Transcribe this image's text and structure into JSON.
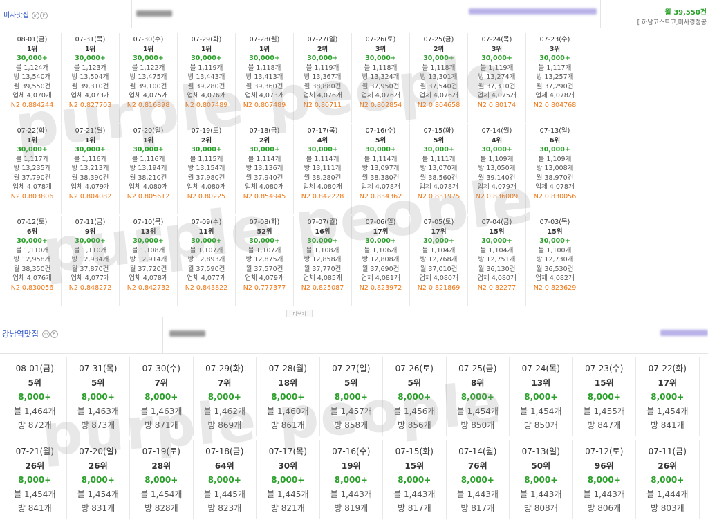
{
  "panel1": {
    "title": "미사맛집",
    "badge_m": "m",
    "badge_p": "P",
    "right_top": "월 39,550건",
    "right_bottom": "[ 하남코스트코,미사경정공",
    "more_label": "더보기",
    "rows": [
      [
        {
          "date": "08-01(금)",
          "rank": "1위",
          "range": "30,000+",
          "blog": "블 1,124개",
          "bang": "방 13,540개",
          "month": "월 39,550건",
          "biz": "업체 4,070개",
          "n2": "N2 0.884244"
        },
        {
          "date": "07-31(목)",
          "rank": "1위",
          "range": "30,000+",
          "blog": "블 1,123개",
          "bang": "방 13,504개",
          "month": "월 39,310건",
          "biz": "업체 4,073개",
          "n2": "N2 0.827703"
        },
        {
          "date": "07-30(수)",
          "rank": "1위",
          "range": "30,000+",
          "blog": "블 1,122개",
          "bang": "방 13,475개",
          "month": "월 39,100건",
          "biz": "업체 4,075개",
          "n2": "N2 0.816898"
        },
        {
          "date": "07-29(화)",
          "rank": "1위",
          "range": "30,000+",
          "blog": "블 1,119개",
          "bang": "방 13,443개",
          "month": "월 39,280건",
          "biz": "업체 4,076개",
          "n2": "N2 0.807489"
        },
        {
          "date": "07-28(월)",
          "rank": "1위",
          "range": "30,000+",
          "blog": "블 1,118개",
          "bang": "방 13,413개",
          "month": "월 39,360건",
          "biz": "업체 4,073개",
          "n2": "N2 0.807489"
        },
        {
          "date": "07-27(일)",
          "rank": "2위",
          "range": "30,000+",
          "blog": "블 1,119개",
          "bang": "방 13,367개",
          "month": "월 38,880건",
          "biz": "업체 4,076개",
          "n2": "N2 0.80711"
        },
        {
          "date": "07-26(토)",
          "rank": "3위",
          "range": "30,000+",
          "blog": "블 1,118개",
          "bang": "방 13,324개",
          "month": "월 37,950건",
          "biz": "업체 4,076개",
          "n2": "N2 0.802854"
        },
        {
          "date": "07-25(금)",
          "rank": "2위",
          "range": "30,000+",
          "blog": "블 1,118개",
          "bang": "방 13,301개",
          "month": "월 37,540건",
          "biz": "업체 4,076개",
          "n2": "N2 0.804658"
        },
        {
          "date": "07-24(목)",
          "rank": "3위",
          "range": "30,000+",
          "blog": "블 1,119개",
          "bang": "방 13,274개",
          "month": "월 37,310건",
          "biz": "업체 4,075개",
          "n2": "N2 0.80174"
        },
        {
          "date": "07-23(수)",
          "rank": "3위",
          "range": "30,000+",
          "blog": "블 1,117개",
          "bang": "방 13,257개",
          "month": "월 37,290건",
          "biz": "업체 4,078개",
          "n2": "N2 0.804768"
        }
      ],
      [
        {
          "date": "07-22(화)",
          "rank": "1위",
          "range": "30,000+",
          "blog": "블 1,117개",
          "bang": "방 13,235개",
          "month": "월 37,790건",
          "biz": "업체 4,078개",
          "n2": "N2 0.803806"
        },
        {
          "date": "07-21(월)",
          "rank": "1위",
          "range": "30,000+",
          "blog": "블 1,116개",
          "bang": "방 13,213개",
          "month": "월 38,390건",
          "biz": "업체 4,079개",
          "n2": "N2 0.804082"
        },
        {
          "date": "07-20(일)",
          "rank": "1위",
          "range": "30,000+",
          "blog": "블 1,116개",
          "bang": "방 13,194개",
          "month": "월 38,210건",
          "biz": "업체 4,080개",
          "n2": "N2 0.805612"
        },
        {
          "date": "07-19(토)",
          "rank": "2위",
          "range": "30,000+",
          "blog": "블 1,115개",
          "bang": "방 13,154개",
          "month": "월 37,980건",
          "biz": "업체 4,080개",
          "n2": "N2 0.80225"
        },
        {
          "date": "07-18(금)",
          "rank": "2위",
          "range": "30,000+",
          "blog": "블 1,114개",
          "bang": "방 13,136개",
          "month": "월 37,940건",
          "biz": "업체 4,080개",
          "n2": "N2 0.854945"
        },
        {
          "date": "07-17(목)",
          "rank": "4위",
          "range": "30,000+",
          "blog": "블 1,114개",
          "bang": "방 13,111개",
          "month": "월 38,280건",
          "biz": "업체 4,080개",
          "n2": "N2 0.842228"
        },
        {
          "date": "07-16(수)",
          "rank": "5위",
          "range": "30,000+",
          "blog": "블 1,114개",
          "bang": "방 13,097개",
          "month": "월 38,380건",
          "biz": "업체 4,078개",
          "n2": "N2 0.834362"
        },
        {
          "date": "07-15(화)",
          "rank": "5위",
          "range": "30,000+",
          "blog": "블 1,111개",
          "bang": "방 13,070개",
          "month": "월 38,560건",
          "biz": "업체 4,078개",
          "n2": "N2 0.831975"
        },
        {
          "date": "07-14(월)",
          "rank": "4위",
          "range": "30,000+",
          "blog": "블 1,109개",
          "bang": "방 13,050개",
          "month": "월 39,140건",
          "biz": "업체 4,079개",
          "n2": "N2 0.836009"
        },
        {
          "date": "07-13(일)",
          "rank": "6위",
          "range": "30,000+",
          "blog": "블 1,109개",
          "bang": "방 13,008개",
          "month": "월 38,970건",
          "biz": "업체 4,078개",
          "n2": "N2 0.830056"
        }
      ],
      [
        {
          "date": "07-12(토)",
          "rank": "6위",
          "range": "30,000+",
          "blog": "블 1,110개",
          "bang": "방 12,958개",
          "month": "월 38,350건",
          "biz": "업체 4,076개",
          "n2": "N2 0.830056"
        },
        {
          "date": "07-11(금)",
          "rank": "9위",
          "range": "30,000+",
          "blog": "블 1,110개",
          "bang": "방 12,934개",
          "month": "월 37,870건",
          "biz": "업체 4,077개",
          "n2": "N2 0.848272"
        },
        {
          "date": "07-10(목)",
          "rank": "13위",
          "range": "30,000+",
          "blog": "블 1,108개",
          "bang": "방 12,914개",
          "month": "월 37,720건",
          "biz": "업체 4,078개",
          "n2": "N2 0.842732"
        },
        {
          "date": "07-09(수)",
          "rank": "11위",
          "range": "30,000+",
          "blog": "블 1,107개",
          "bang": "방 12,893개",
          "month": "월 37,590건",
          "biz": "업체 4,077개",
          "n2": "N2 0.843822"
        },
        {
          "date": "07-08(화)",
          "rank": "52위",
          "range": "30,000+",
          "blog": "블 1,107개",
          "bang": "방 12,875개",
          "month": "월 37,570건",
          "biz": "업체 4,079개",
          "n2": "N2 0.777377"
        },
        {
          "date": "07-07(월)",
          "rank": "16위",
          "range": "30,000+",
          "blog": "블 1,108개",
          "bang": "방 12,858개",
          "month": "월 37,770건",
          "biz": "업체 4,085개",
          "n2": "N2 0.825087"
        },
        {
          "date": "07-06(일)",
          "rank": "17위",
          "range": "30,000+",
          "blog": "블 1,106개",
          "bang": "방 12,808개",
          "month": "월 37,690건",
          "biz": "업체 4,081개",
          "n2": "N2 0.823972"
        },
        {
          "date": "07-05(토)",
          "rank": "17위",
          "range": "30,000+",
          "blog": "블 1,104개",
          "bang": "방 12,768개",
          "month": "월 37,010건",
          "biz": "업체 4,080개",
          "n2": "N2 0.821869"
        },
        {
          "date": "07-04(금)",
          "rank": "15위",
          "range": "30,000+",
          "blog": "블 1,104개",
          "bang": "방 12,751개",
          "month": "월 36,130건",
          "biz": "업체 4,080개",
          "n2": "N2 0.82277"
        },
        {
          "date": "07-03(목)",
          "rank": "15위",
          "range": "30,000+",
          "blog": "블 1,100개",
          "bang": "방 12,730개",
          "month": "월 36,530건",
          "biz": "업체 4,082개",
          "n2": "N2 0.823629"
        }
      ]
    ]
  },
  "panel2": {
    "title": "강남역맛집",
    "badge_m": "m",
    "badge_p": "P",
    "rows": [
      [
        {
          "date": "08-01(금)",
          "rank": "5위",
          "range": "8,000+",
          "blog": "블 1,464개",
          "bang": "방 872개"
        },
        {
          "date": "07-31(목)",
          "rank": "5위",
          "range": "8,000+",
          "blog": "블 1,463개",
          "bang": "방 873개"
        },
        {
          "date": "07-30(수)",
          "rank": "7위",
          "range": "8,000+",
          "blog": "블 1,463개",
          "bang": "방 871개"
        },
        {
          "date": "07-29(화)",
          "rank": "7위",
          "range": "8,000+",
          "blog": "블 1,462개",
          "bang": "방 869개"
        },
        {
          "date": "07-28(월)",
          "rank": "18위",
          "range": "8,000+",
          "blog": "블 1,460개",
          "bang": "방 861개"
        },
        {
          "date": "07-27(일)",
          "rank": "5위",
          "range": "8,000+",
          "blog": "블 1,457개",
          "bang": "방 858개"
        },
        {
          "date": "07-26(토)",
          "rank": "5위",
          "range": "8,000+",
          "blog": "블 1,456개",
          "bang": "방 856개"
        },
        {
          "date": "07-25(금)",
          "rank": "8위",
          "range": "8,000+",
          "blog": "블 1,454개",
          "bang": "방 850개"
        },
        {
          "date": "07-24(목)",
          "rank": "13위",
          "range": "8,000+",
          "blog": "블 1,454개",
          "bang": "방 850개"
        },
        {
          "date": "07-23(수)",
          "rank": "15위",
          "range": "8,000+",
          "blog": "블 1,455개",
          "bang": "방 847개"
        },
        {
          "date": "07-22(화)",
          "rank": "17위",
          "range": "8,000+",
          "blog": "블 1,454개",
          "bang": "방 841개"
        }
      ],
      [
        {
          "date": "07-21(월)",
          "rank": "26위",
          "range": "8,000+",
          "blog": "블 1,454개",
          "bang": "방 841개"
        },
        {
          "date": "07-20(일)",
          "rank": "26위",
          "range": "8,000+",
          "blog": "블 1,454개",
          "bang": "방 831개"
        },
        {
          "date": "07-19(토)",
          "rank": "28위",
          "range": "8,000+",
          "blog": "블 1,454개",
          "bang": "방 828개"
        },
        {
          "date": "07-18(금)",
          "rank": "64위",
          "range": "8,000+",
          "blog": "블 1,445개",
          "bang": "방 823개"
        },
        {
          "date": "07-17(목)",
          "rank": "30위",
          "range": "8,000+",
          "blog": "블 1,445개",
          "bang": "방 821개"
        },
        {
          "date": "07-16(수)",
          "rank": "19위",
          "range": "8,000+",
          "blog": "블 1,443개",
          "bang": "방 819개"
        },
        {
          "date": "07-15(화)",
          "rank": "15위",
          "range": "8,000+",
          "blog": "블 1,443개",
          "bang": "방 817개"
        },
        {
          "date": "07-14(월)",
          "rank": "76위",
          "range": "8,000+",
          "blog": "블 1,443개",
          "bang": "방 817개"
        },
        {
          "date": "07-13(일)",
          "rank": "50위",
          "range": "8,000+",
          "blog": "블 1,443개",
          "bang": "방 808개"
        },
        {
          "date": "07-12(토)",
          "rank": "96위",
          "range": "8,000+",
          "blog": "블 1,443개",
          "bang": "방 806개"
        },
        {
          "date": "07-11(금)",
          "rank": "26위",
          "range": "8,000+",
          "blog": "블 1,444개",
          "bang": "방 803개"
        }
      ]
    ]
  },
  "watermark": "purple people",
  "colors": {
    "title": "#2f55c8",
    "green": "#2ba02b",
    "orange": "#f07818",
    "blur": "#b8b2e8"
  }
}
